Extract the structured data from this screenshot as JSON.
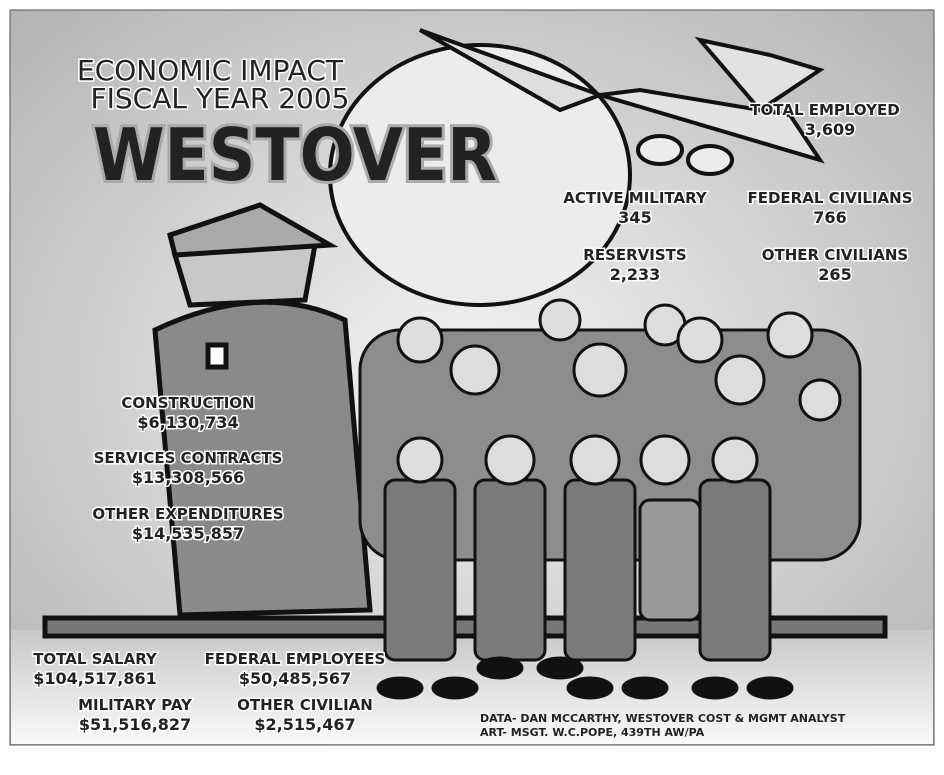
{
  "header": {
    "line1": "ECONOMIC IMPACT",
    "line2": "FISCAL YEAR 2005",
    "title": "WESTOVER"
  },
  "personnel": {
    "total": {
      "label": "TOTAL EMPLOYED",
      "value": "3,609"
    },
    "items": [
      {
        "label": "ACTIVE MILITARY",
        "value": "345"
      },
      {
        "label": "FEDERAL CIVILIANS",
        "value": "766"
      },
      {
        "label": "RESERVISTS",
        "value": "2,233"
      },
      {
        "label": "OTHER CIVILIANS",
        "value": "265"
      }
    ]
  },
  "expenditures": [
    {
      "label": "CONSTRUCTION",
      "value": "$6,130,734"
    },
    {
      "label": "SERVICES CONTRACTS",
      "value": "$13,308,566"
    },
    {
      "label": "OTHER EXPENDITURES",
      "value": "$14,535,857"
    }
  ],
  "salaries": [
    {
      "label": "TOTAL SALARY",
      "value": "$104,517,861"
    },
    {
      "label": "FEDERAL EMPLOYEES",
      "value": "$50,485,567"
    },
    {
      "label": "MILITARY PAY",
      "value": "$51,516,827"
    },
    {
      "label": "OTHER CIVILIAN",
      "value": "$2,515,467"
    }
  ],
  "credits": [
    "DATA- DAN MCCARTHY, WESTOVER COST & MGMT ANALYST",
    "ART- MSGT. W.C.POPE, 439TH AW/PA"
  ]
}
